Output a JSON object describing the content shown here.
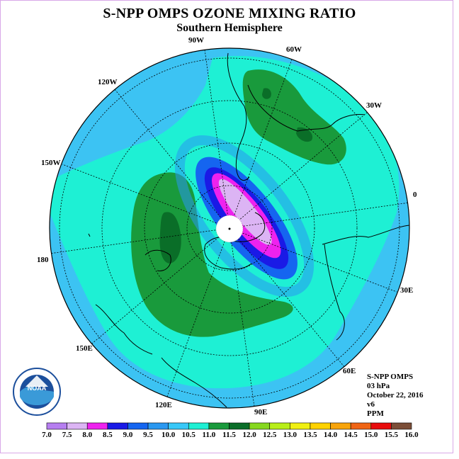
{
  "title": "S-NPP OMPS OZONE MIXING RATIO",
  "subtitle": "Southern Hemisphere",
  "longitude_labels": [
    {
      "text": "90W"
    },
    {
      "text": "60W"
    },
    {
      "text": "30W"
    },
    {
      "text": "0"
    },
    {
      "text": "30E"
    },
    {
      "text": "60E"
    },
    {
      "text": "90E"
    },
    {
      "text": "120E"
    },
    {
      "text": "150E"
    },
    {
      "text": "180"
    },
    {
      "text": "150W"
    },
    {
      "text": "120W"
    }
  ],
  "info": {
    "instrument": "S-NPP OMPS",
    "level": "03 hPa",
    "date": "October 22, 2016",
    "version": "v6",
    "units": "PPM"
  },
  "logo_text": "NOAA",
  "colorbar": {
    "labels": [
      "7.0",
      "7.5",
      "8.0",
      "8.5",
      "9.0",
      "9.5",
      "10.0",
      "10.5",
      "11.0",
      "11.5",
      "12.0",
      "12.5",
      "13.0",
      "13.5",
      "14.0",
      "14.5",
      "15.0",
      "15.5",
      "16.0"
    ],
    "colors": [
      "#b67ef0",
      "#dcb4f4",
      "#ee22ee",
      "#1a1ae6",
      "#1565f0",
      "#2a98f0",
      "#38c8f8",
      "#1ef0d4",
      "#199a3c",
      "#0a6e28",
      "#86d81e",
      "#b8ee18",
      "#f0f012",
      "#ffd200",
      "#f8a40a",
      "#f06414",
      "#e80c0c",
      "#7c4e38"
    ]
  },
  "colors": {
    "ocean_base": "#3cc3f3",
    "frame": "#d9a8e8"
  }
}
